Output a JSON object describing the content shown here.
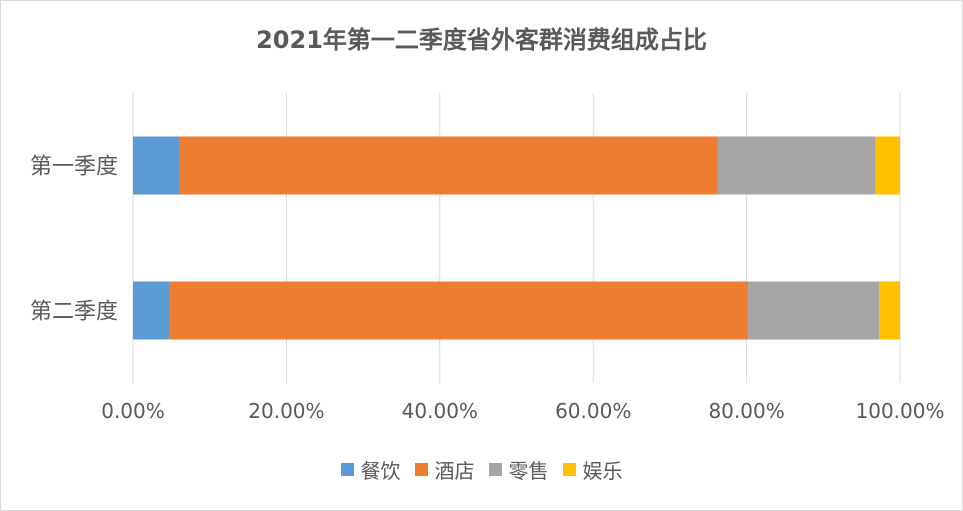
{
  "chart_data": {
    "type": "bar",
    "orientation": "horizontal",
    "stacked": "percent",
    "title": "2021年第一二季度省外客群消费组成占比",
    "categories": [
      "第一季度",
      "第二季度"
    ],
    "series": [
      {
        "name": "餐饮",
        "color": "#5b9bd5",
        "values": [
          6.0,
          4.7
        ]
      },
      {
        "name": "酒店",
        "color": "#ed7d31",
        "values": [
          70.2,
          75.5
        ]
      },
      {
        "name": "零售",
        "color": "#a5a5a5",
        "values": [
          20.6,
          17.1
        ]
      },
      {
        "name": "娱乐",
        "color": "#ffc000",
        "values": [
          3.2,
          2.7
        ]
      }
    ],
    "xlim": [
      0,
      100
    ],
    "x_ticks": [
      "0.00%",
      "20.00%",
      "40.00%",
      "60.00%",
      "80.00%",
      "100.00%"
    ],
    "grid": true,
    "legend_position": "bottom"
  }
}
